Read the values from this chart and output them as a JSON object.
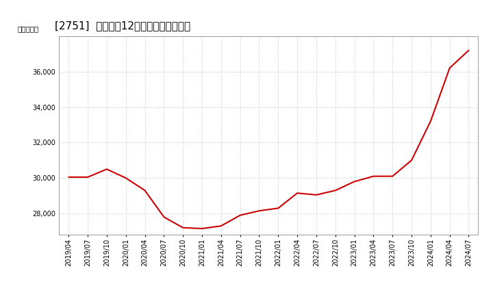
{
  "title": "[2751]  売上高の12か月移動合計の推移",
  "ylabel": "（百万円）",
  "line_color": "#cc0000",
  "background_color": "#ffffff",
  "plot_bg_color": "#ffffff",
  "grid_color": "#bbbbbb",
  "dates": [
    "2019/04",
    "2019/07",
    "2019/10",
    "2020/01",
    "2020/04",
    "2020/07",
    "2020/10",
    "2021/01",
    "2021/04",
    "2021/07",
    "2021/10",
    "2022/01",
    "2022/04",
    "2022/07",
    "2022/10",
    "2023/01",
    "2023/04",
    "2023/07",
    "2023/10",
    "2024/01",
    "2024/04",
    "2024/07"
  ],
  "values": [
    30050,
    30050,
    30500,
    30000,
    29300,
    27800,
    27200,
    27150,
    27300,
    27900,
    28150,
    28300,
    29150,
    29050,
    29300,
    29800,
    30100,
    30100,
    31000,
    33200,
    36200,
    37200
  ],
  "ylim": [
    26800,
    38000
  ],
  "yticks": [
    28000,
    30000,
    32000,
    34000,
    36000
  ],
  "title_fontsize": 11,
  "tick_fontsize": 7,
  "ylabel_fontsize": 7.5
}
